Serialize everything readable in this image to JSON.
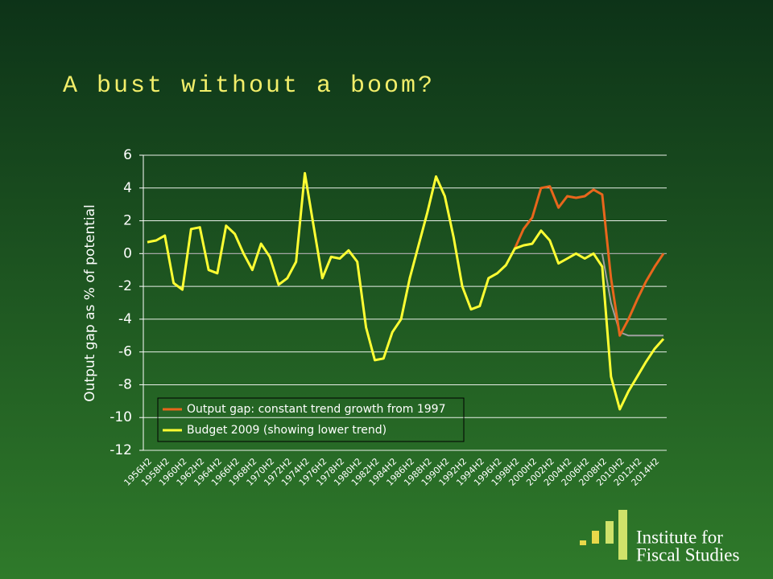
{
  "chart_data": {
    "type": "line",
    "title": "A bust without a boom?",
    "y_label": "Output gap as % of potential",
    "categories": [
      "1956H2",
      null,
      "1958H2",
      null,
      "1960H2",
      null,
      "1962H2",
      null,
      "1964H2",
      null,
      "1966H2",
      null,
      "1968H2",
      null,
      "1970H2",
      null,
      "1972H2",
      null,
      "1974H2",
      null,
      "1976H2",
      null,
      "1978H2",
      null,
      "1980H2",
      null,
      "1982H2",
      null,
      "1984H2",
      null,
      "1986H2",
      null,
      "1988H2",
      null,
      "1990H2",
      null,
      "1992H2",
      null,
      "1994H2",
      null,
      "1996H2",
      null,
      "1998H2",
      null,
      "2000H2",
      null,
      "2002H2",
      null,
      "2004H2",
      null,
      "2006H2",
      null,
      "2008H2",
      null,
      "2010H2",
      null,
      "2012H2",
      null,
      "2014H2",
      null
    ],
    "series": [
      {
        "name": "Output gap: constant trend growth from 1997",
        "color": "#e8661c",
        "values": [
          null,
          null,
          null,
          null,
          null,
          null,
          null,
          null,
          null,
          null,
          null,
          null,
          null,
          null,
          null,
          null,
          null,
          null,
          null,
          null,
          null,
          null,
          null,
          null,
          null,
          null,
          null,
          null,
          null,
          null,
          null,
          null,
          null,
          null,
          null,
          null,
          null,
          null,
          null,
          null,
          null,
          null,
          0.3,
          1.5,
          2.2,
          4.0,
          4.1,
          2.8,
          3.5,
          3.4,
          3.5,
          3.9,
          3.6,
          -1.5,
          -5.0,
          -4.0,
          -2.8,
          -1.7,
          -0.8,
          0.0
        ]
      },
      {
        "name": "Budget 2009 (showing lower trend)",
        "color": "#ffff33",
        "values": [
          0.7,
          0.8,
          1.1,
          -1.8,
          -2.2,
          1.5,
          1.6,
          -1.0,
          -1.2,
          1.7,
          1.2,
          0.0,
          -1.0,
          0.6,
          -0.2,
          -1.9,
          -1.5,
          -0.5,
          4.9,
          1.7,
          -1.5,
          -0.2,
          -0.3,
          0.2,
          -0.5,
          -4.5,
          -6.5,
          -6.4,
          -4.8,
          -4.0,
          -1.5,
          0.5,
          2.5,
          4.7,
          3.5,
          1.0,
          -2.0,
          -3.4,
          -3.2,
          -1.5,
          -1.2,
          -0.7,
          0.3,
          0.5,
          0.6,
          1.4,
          0.8,
          -0.6,
          -0.3,
          0.0,
          -0.3,
          0.0,
          -0.8,
          -7.5,
          -9.5,
          -8.4,
          -7.5,
          -6.6,
          -5.8,
          -5.2
        ]
      },
      {
        "color": "#a0a0a0",
        "values": [
          null,
          null,
          null,
          null,
          null,
          null,
          null,
          null,
          null,
          null,
          null,
          null,
          null,
          null,
          null,
          null,
          null,
          null,
          null,
          null,
          null,
          null,
          null,
          null,
          null,
          null,
          null,
          null,
          null,
          null,
          null,
          null,
          null,
          null,
          null,
          null,
          null,
          null,
          null,
          null,
          null,
          null,
          null,
          null,
          null,
          null,
          null,
          null,
          null,
          null,
          null,
          null,
          0.0,
          -3.0,
          -4.8,
          -5.0,
          -5.0,
          -5.0,
          -5.0,
          -5.0
        ]
      }
    ],
    "ylim": [
      -12,
      6
    ],
    "yticks": [
      -12,
      -10,
      -8,
      -6,
      -4,
      -2,
      0,
      2,
      4,
      6
    ],
    "grid": true,
    "legend": "lower left"
  },
  "logo": [
    "Institute for",
    "Fiscal Studies"
  ]
}
